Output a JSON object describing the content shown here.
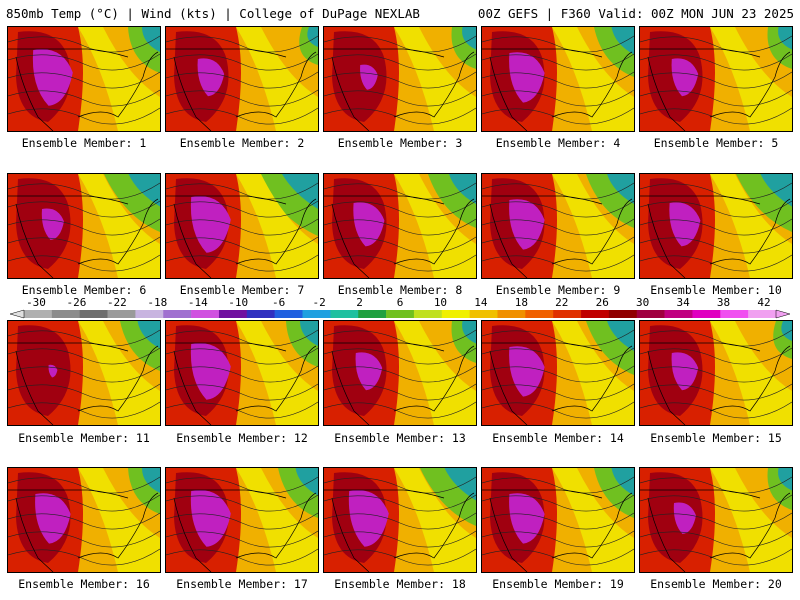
{
  "header": {
    "left_title": "850mb Temp (°C) | Wind (kts) | College of DuPage NEXLAB",
    "right_title": "00Z GEFS | F360 Valid: 00Z MON JUN 23 2025"
  },
  "colorbar": {
    "labels": [
      "-30",
      "-26",
      "-22",
      "-18",
      "-14",
      "-10",
      "-6",
      "-2",
      "2",
      "6",
      "10",
      "14",
      "18",
      "22",
      "26",
      "30",
      "34",
      "38",
      "42"
    ],
    "colors": [
      "#b0b0b0",
      "#8c8c8c",
      "#6e6e6e",
      "#9a9a9a",
      "#c8b4e0",
      "#a070d0",
      "#d050e0",
      "#7010a0",
      "#3030c0",
      "#2060e0",
      "#20a0e0",
      "#20c0a0",
      "#20a040",
      "#70c020",
      "#c0e020",
      "#f0f000",
      "#f0c000",
      "#f09000",
      "#f06000",
      "#e03000",
      "#c00000",
      "#900000",
      "#a00040",
      "#c00080",
      "#e000c0",
      "#f050f0",
      "#f0a0f0"
    ],
    "arrows": [
      "left-arrow",
      "right-arrow"
    ]
  },
  "members": [
    {
      "caption": "Ensemble Member: 1",
      "purple": 0.9,
      "cool": 0.4
    },
    {
      "caption": "Ensemble Member: 2",
      "purple": 0.6,
      "cool": 0.2
    },
    {
      "caption": "Ensemble Member: 3",
      "purple": 0.4,
      "cool": 0.3
    },
    {
      "caption": "Ensemble Member: 4",
      "purple": 0.8,
      "cool": 0.5
    },
    {
      "caption": "Ensemble Member: 5",
      "purple": 0.6,
      "cool": 0.3
    },
    {
      "caption": "Ensemble Member: 6",
      "purple": 0.5,
      "cool": 0.7
    },
    {
      "caption": "Ensemble Member: 7",
      "purple": 0.9,
      "cool": 0.8
    },
    {
      "caption": "Ensemble Member: 8",
      "purple": 0.7,
      "cool": 0.6
    },
    {
      "caption": "Ensemble Member: 9",
      "purple": 0.8,
      "cool": 0.6
    },
    {
      "caption": "Ensemble Member: 10",
      "purple": 0.7,
      "cool": 0.7
    },
    {
      "caption": "Ensemble Member: 11",
      "purple": 0.2,
      "cool": 0.5
    },
    {
      "caption": "Ensemble Member: 12",
      "purple": 0.9,
      "cool": 0.4
    },
    {
      "caption": "Ensemble Member: 13",
      "purple": 0.6,
      "cool": 0.3
    },
    {
      "caption": "Ensemble Member: 14",
      "purple": 0.8,
      "cool": 0.6
    },
    {
      "caption": "Ensemble Member: 15",
      "purple": 0.6,
      "cool": 0.2
    },
    {
      "caption": "Ensemble Member: 16",
      "purple": 0.8,
      "cool": 0.4
    },
    {
      "caption": "Ensemble Member: 17",
      "purple": 0.9,
      "cool": 0.5
    },
    {
      "caption": "Ensemble Member: 18",
      "purple": 0.9,
      "cool": 0.7
    },
    {
      "caption": "Ensemble Member: 19",
      "purple": 0.8,
      "cool": 0.5
    },
    {
      "caption": "Ensemble Member: 20",
      "purple": 0.5,
      "cool": 0.3
    }
  ]
}
